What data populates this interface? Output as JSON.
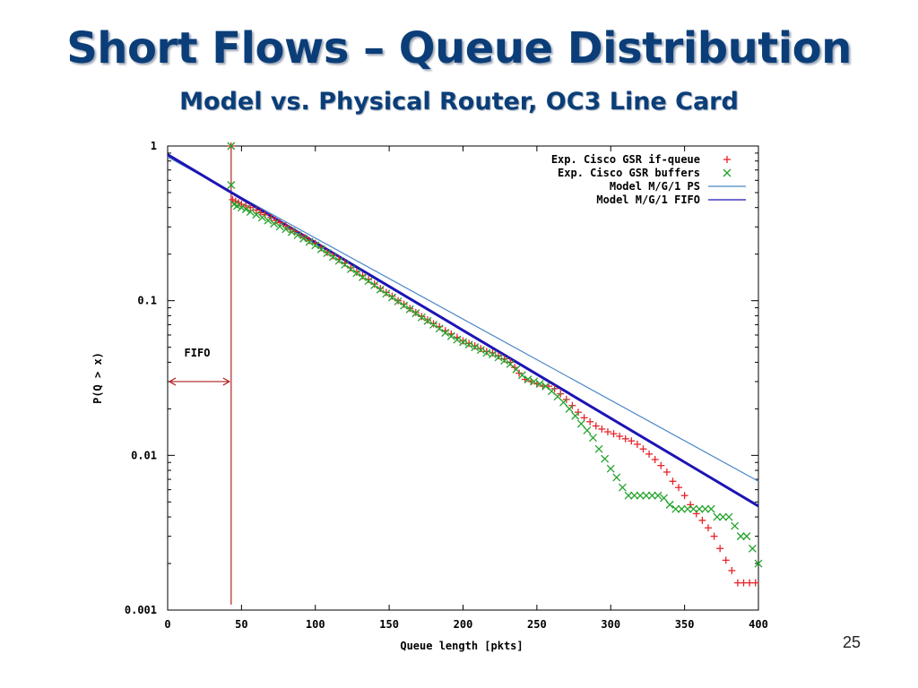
{
  "slide": {
    "title": "Short Flows – Queue Distribution",
    "subtitle": "Model vs. Physical Router, OC3 Line Card",
    "page_number": "25"
  },
  "chart_data": {
    "type": "scatter",
    "xlabel": "Queue length [pkts]",
    "ylabel": "P(Q > x)",
    "xlim": [
      0,
      400
    ],
    "ylim": [
      0.001,
      1
    ],
    "yscale": "log",
    "x_ticks": [
      0,
      50,
      100,
      150,
      200,
      250,
      300,
      350,
      400
    ],
    "y_ticks": [
      {
        "value": 1,
        "label": "1"
      },
      {
        "value": 0.1,
        "label": "0.1"
      },
      {
        "value": 0.01,
        "label": "0.01"
      },
      {
        "value": 0.001,
        "label": "0.001"
      }
    ],
    "grid": false,
    "legend_position": "top-right",
    "annotation": {
      "text": "FIFO",
      "x_start": 0,
      "x_end": 43,
      "y": 0.03
    },
    "vline_x": 43,
    "series": [
      {
        "name": "Exp. Cisco GSR if-queue",
        "marker": "+",
        "color": "#e8232a",
        "points": [
          [
            43,
            1
          ],
          [
            44,
            0.45
          ],
          [
            46,
            0.44
          ],
          [
            48,
            0.43
          ],
          [
            50,
            0.42
          ],
          [
            53,
            0.41
          ],
          [
            56,
            0.4
          ],
          [
            60,
            0.385
          ],
          [
            63,
            0.37
          ],
          [
            66,
            0.36
          ],
          [
            70,
            0.345
          ],
          [
            73,
            0.33
          ],
          [
            76,
            0.32
          ],
          [
            80,
            0.305
          ],
          [
            83,
            0.29
          ],
          [
            86,
            0.28
          ],
          [
            90,
            0.265
          ],
          [
            93,
            0.255
          ],
          [
            96,
            0.245
          ],
          [
            100,
            0.235
          ],
          [
            104,
            0.22
          ],
          [
            108,
            0.205
          ],
          [
            112,
            0.195
          ],
          [
            116,
            0.185
          ],
          [
            120,
            0.175
          ],
          [
            124,
            0.163
          ],
          [
            128,
            0.153
          ],
          [
            132,
            0.145
          ],
          [
            136,
            0.137
          ],
          [
            140,
            0.128
          ],
          [
            144,
            0.12
          ],
          [
            148,
            0.113
          ],
          [
            152,
            0.107
          ],
          [
            156,
            0.1
          ],
          [
            160,
            0.095
          ],
          [
            164,
            0.089
          ],
          [
            168,
            0.084
          ],
          [
            172,
            0.079
          ],
          [
            176,
            0.075
          ],
          [
            180,
            0.071
          ],
          [
            184,
            0.068
          ],
          [
            188,
            0.064
          ],
          [
            192,
            0.061
          ],
          [
            196,
            0.058
          ],
          [
            200,
            0.055
          ],
          [
            204,
            0.053
          ],
          [
            208,
            0.051
          ],
          [
            212,
            0.049
          ],
          [
            216,
            0.047
          ],
          [
            220,
            0.046
          ],
          [
            224,
            0.044
          ],
          [
            228,
            0.042
          ],
          [
            232,
            0.04
          ],
          [
            235,
            0.037
          ],
          [
            238,
            0.034
          ],
          [
            242,
            0.031
          ],
          [
            246,
            0.03
          ],
          [
            250,
            0.029
          ],
          [
            254,
            0.028
          ],
          [
            258,
            0.028
          ],
          [
            262,
            0.027
          ],
          [
            266,
            0.025
          ],
          [
            270,
            0.023
          ],
          [
            274,
            0.021
          ],
          [
            278,
            0.019
          ],
          [
            282,
            0.0175
          ],
          [
            286,
            0.0165
          ],
          [
            290,
            0.0155
          ],
          [
            294,
            0.0148
          ],
          [
            298,
            0.0142
          ],
          [
            302,
            0.0138
          ],
          [
            306,
            0.0133
          ],
          [
            310,
            0.0128
          ],
          [
            314,
            0.0124
          ],
          [
            318,
            0.0118
          ],
          [
            322,
            0.011
          ],
          [
            326,
            0.0102
          ],
          [
            330,
            0.0094
          ],
          [
            334,
            0.0086
          ],
          [
            338,
            0.0078
          ],
          [
            342,
            0.0068
          ],
          [
            346,
            0.0062
          ],
          [
            350,
            0.0055
          ],
          [
            354,
            0.0048
          ],
          [
            358,
            0.0042
          ],
          [
            362,
            0.0038
          ],
          [
            366,
            0.0034
          ],
          [
            370,
            0.003
          ],
          [
            374,
            0.0025
          ],
          [
            378,
            0.0021
          ],
          [
            382,
            0.0018
          ],
          [
            386,
            0.0015
          ],
          [
            390,
            0.0015
          ],
          [
            394,
            0.0015
          ],
          [
            398,
            0.0015
          ]
        ]
      },
      {
        "name": "Exp. Cisco GSR buffers",
        "marker": "x",
        "color": "#22a32a",
        "points": [
          [
            43,
            1
          ],
          [
            43,
            0.56
          ],
          [
            45,
            0.42
          ],
          [
            47,
            0.41
          ],
          [
            50,
            0.4
          ],
          [
            53,
            0.39
          ],
          [
            56,
            0.375
          ],
          [
            60,
            0.36
          ],
          [
            64,
            0.345
          ],
          [
            68,
            0.33
          ],
          [
            72,
            0.315
          ],
          [
            76,
            0.302
          ],
          [
            80,
            0.29
          ],
          [
            84,
            0.278
          ],
          [
            88,
            0.265
          ],
          [
            92,
            0.252
          ],
          [
            96,
            0.24
          ],
          [
            100,
            0.228
          ],
          [
            104,
            0.215
          ],
          [
            108,
            0.203
          ],
          [
            112,
            0.192
          ],
          [
            116,
            0.181
          ],
          [
            120,
            0.171
          ],
          [
            124,
            0.16
          ],
          [
            128,
            0.151
          ],
          [
            132,
            0.142
          ],
          [
            136,
            0.134
          ],
          [
            140,
            0.126
          ],
          [
            144,
            0.118
          ],
          [
            148,
            0.111
          ],
          [
            152,
            0.105
          ],
          [
            156,
            0.099
          ],
          [
            160,
            0.093
          ],
          [
            164,
            0.088
          ],
          [
            168,
            0.083
          ],
          [
            172,
            0.078
          ],
          [
            176,
            0.074
          ],
          [
            180,
            0.07
          ],
          [
            184,
            0.066
          ],
          [
            188,
            0.062
          ],
          [
            192,
            0.059
          ],
          [
            196,
            0.056
          ],
          [
            200,
            0.054
          ],
          [
            204,
            0.052
          ],
          [
            208,
            0.05
          ],
          [
            212,
            0.048
          ],
          [
            216,
            0.046
          ],
          [
            220,
            0.045
          ],
          [
            224,
            0.043
          ],
          [
            228,
            0.041
          ],
          [
            232,
            0.039
          ],
          [
            236,
            0.036
          ],
          [
            240,
            0.033
          ],
          [
            244,
            0.031
          ],
          [
            248,
            0.03
          ],
          [
            252,
            0.029
          ],
          [
            256,
            0.028
          ],
          [
            260,
            0.026
          ],
          [
            264,
            0.024
          ],
          [
            268,
            0.022
          ],
          [
            272,
            0.02
          ],
          [
            276,
            0.018
          ],
          [
            280,
            0.016
          ],
          [
            284,
            0.0145
          ],
          [
            288,
            0.013
          ],
          [
            292,
            0.011
          ],
          [
            296,
            0.0095
          ],
          [
            300,
            0.0082
          ],
          [
            304,
            0.0072
          ],
          [
            308,
            0.0062
          ],
          [
            312,
            0.0055
          ],
          [
            316,
            0.0055
          ],
          [
            320,
            0.0055
          ],
          [
            324,
            0.0055
          ],
          [
            328,
            0.0055
          ],
          [
            332,
            0.0055
          ],
          [
            336,
            0.0053
          ],
          [
            340,
            0.0048
          ],
          [
            344,
            0.0045
          ],
          [
            348,
            0.0045
          ],
          [
            352,
            0.0045
          ],
          [
            356,
            0.0045
          ],
          [
            360,
            0.0045
          ],
          [
            364,
            0.0045
          ],
          [
            368,
            0.0045
          ],
          [
            372,
            0.004
          ],
          [
            376,
            0.004
          ],
          [
            380,
            0.004
          ],
          [
            384,
            0.0035
          ],
          [
            388,
            0.003
          ],
          [
            392,
            0.003
          ],
          [
            396,
            0.0025
          ],
          [
            400,
            0.002
          ]
        ]
      },
      {
        "name": "Model M/G/1 PS",
        "marker": "line",
        "color": "#4a86c8",
        "line": {
          "x0": 0,
          "y0": 0.85,
          "x1": 400,
          "y1": 0.0068
        }
      },
      {
        "name": "Model M/G/1 FIFO",
        "marker": "line",
        "color": "#1c14b4",
        "line": {
          "x0": 0,
          "y0": 0.88,
          "x1": 400,
          "y1": 0.0047
        }
      }
    ]
  }
}
